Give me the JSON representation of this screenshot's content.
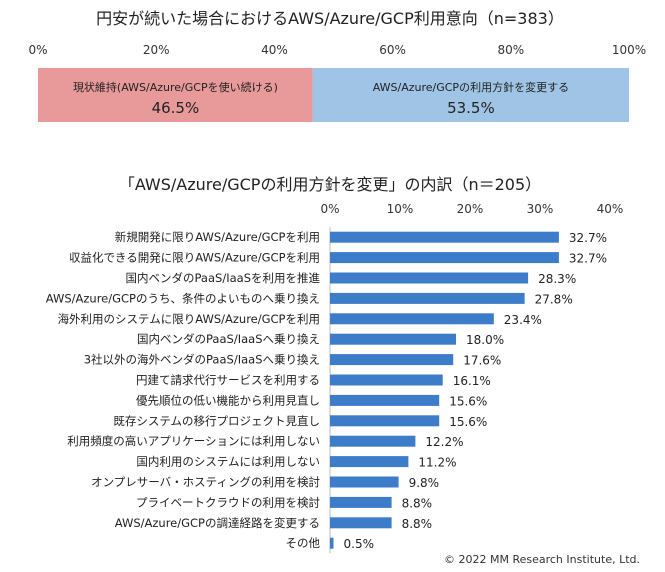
{
  "chart_data": [
    {
      "type": "bar",
      "orientation": "horizontal-stacked",
      "title": "円安が続いた場合におけるAWS/Azure/GCP利用意向（n=383）",
      "xlim": [
        0,
        100
      ],
      "ticks": [
        "0%",
        "20%",
        "40%",
        "60%",
        "80%",
        "100%"
      ],
      "grid": false,
      "segments": [
        {
          "name": "現状維持(AWS/Azure/GCPを使い続ける)",
          "value": 46.5,
          "label": "46.5%",
          "color": "#e8999a"
        },
        {
          "name": "AWS/Azure/GCPの利用方針を変更する",
          "value": 53.5,
          "label": "53.5%",
          "color": "#9fc4e6"
        }
      ]
    },
    {
      "type": "bar",
      "orientation": "horizontal",
      "title": "「AWS/Azure/GCPの利用方針を変更」の内訳（n＝205）",
      "xlim": [
        0,
        40
      ],
      "ticks": [
        "0%",
        "10%",
        "20%",
        "30%",
        "40%"
      ],
      "grid": false,
      "color": "#3d7cc9",
      "categories": [
        "新規開発に限りAWS/Azure/GCPを利用",
        "収益化できる開発に限りAWS/Azure/GCPを利用",
        "国内ベンダのPaaS/IaaSを利用を推進",
        "AWS/Azure/GCPのうち、条件のよいものへ乗り換え",
        "海外利用のシステムに限りAWS/Azure/GCPを利用",
        "国内ベンダのPaaS/IaaSへ乗り換え",
        "3社以外の海外ベンダのPaaS/IaaSへ乗り換え",
        "円建て請求代行サービスを利用する",
        "優先順位の低い機能から利用見直し",
        "既存システムの移行プロジェクト見直し",
        "利用頻度の高いアプリケーションには利用しない",
        "国内利用のシステムには利用しない",
        "オンプレサーバ・ホスティングの利用を検討",
        "プライベートクラウドの利用を検討",
        "AWS/Azure/GCPの調達経路を変更する",
        "その他"
      ],
      "values": [
        32.7,
        32.7,
        28.3,
        27.8,
        23.4,
        18.0,
        17.6,
        16.1,
        15.6,
        15.6,
        12.2,
        11.2,
        9.8,
        8.8,
        8.8,
        0.5
      ],
      "labels": [
        "32.7%",
        "32.7%",
        "28.3%",
        "27.8%",
        "23.4%",
        "18.0%",
        "17.6%",
        "16.1%",
        "15.6%",
        "15.6%",
        "12.2%",
        "11.2%",
        "9.8%",
        "8.8%",
        "8.8%",
        "0.5%"
      ]
    }
  ],
  "copyright": "© 2022 MM Research Institute, Ltd."
}
